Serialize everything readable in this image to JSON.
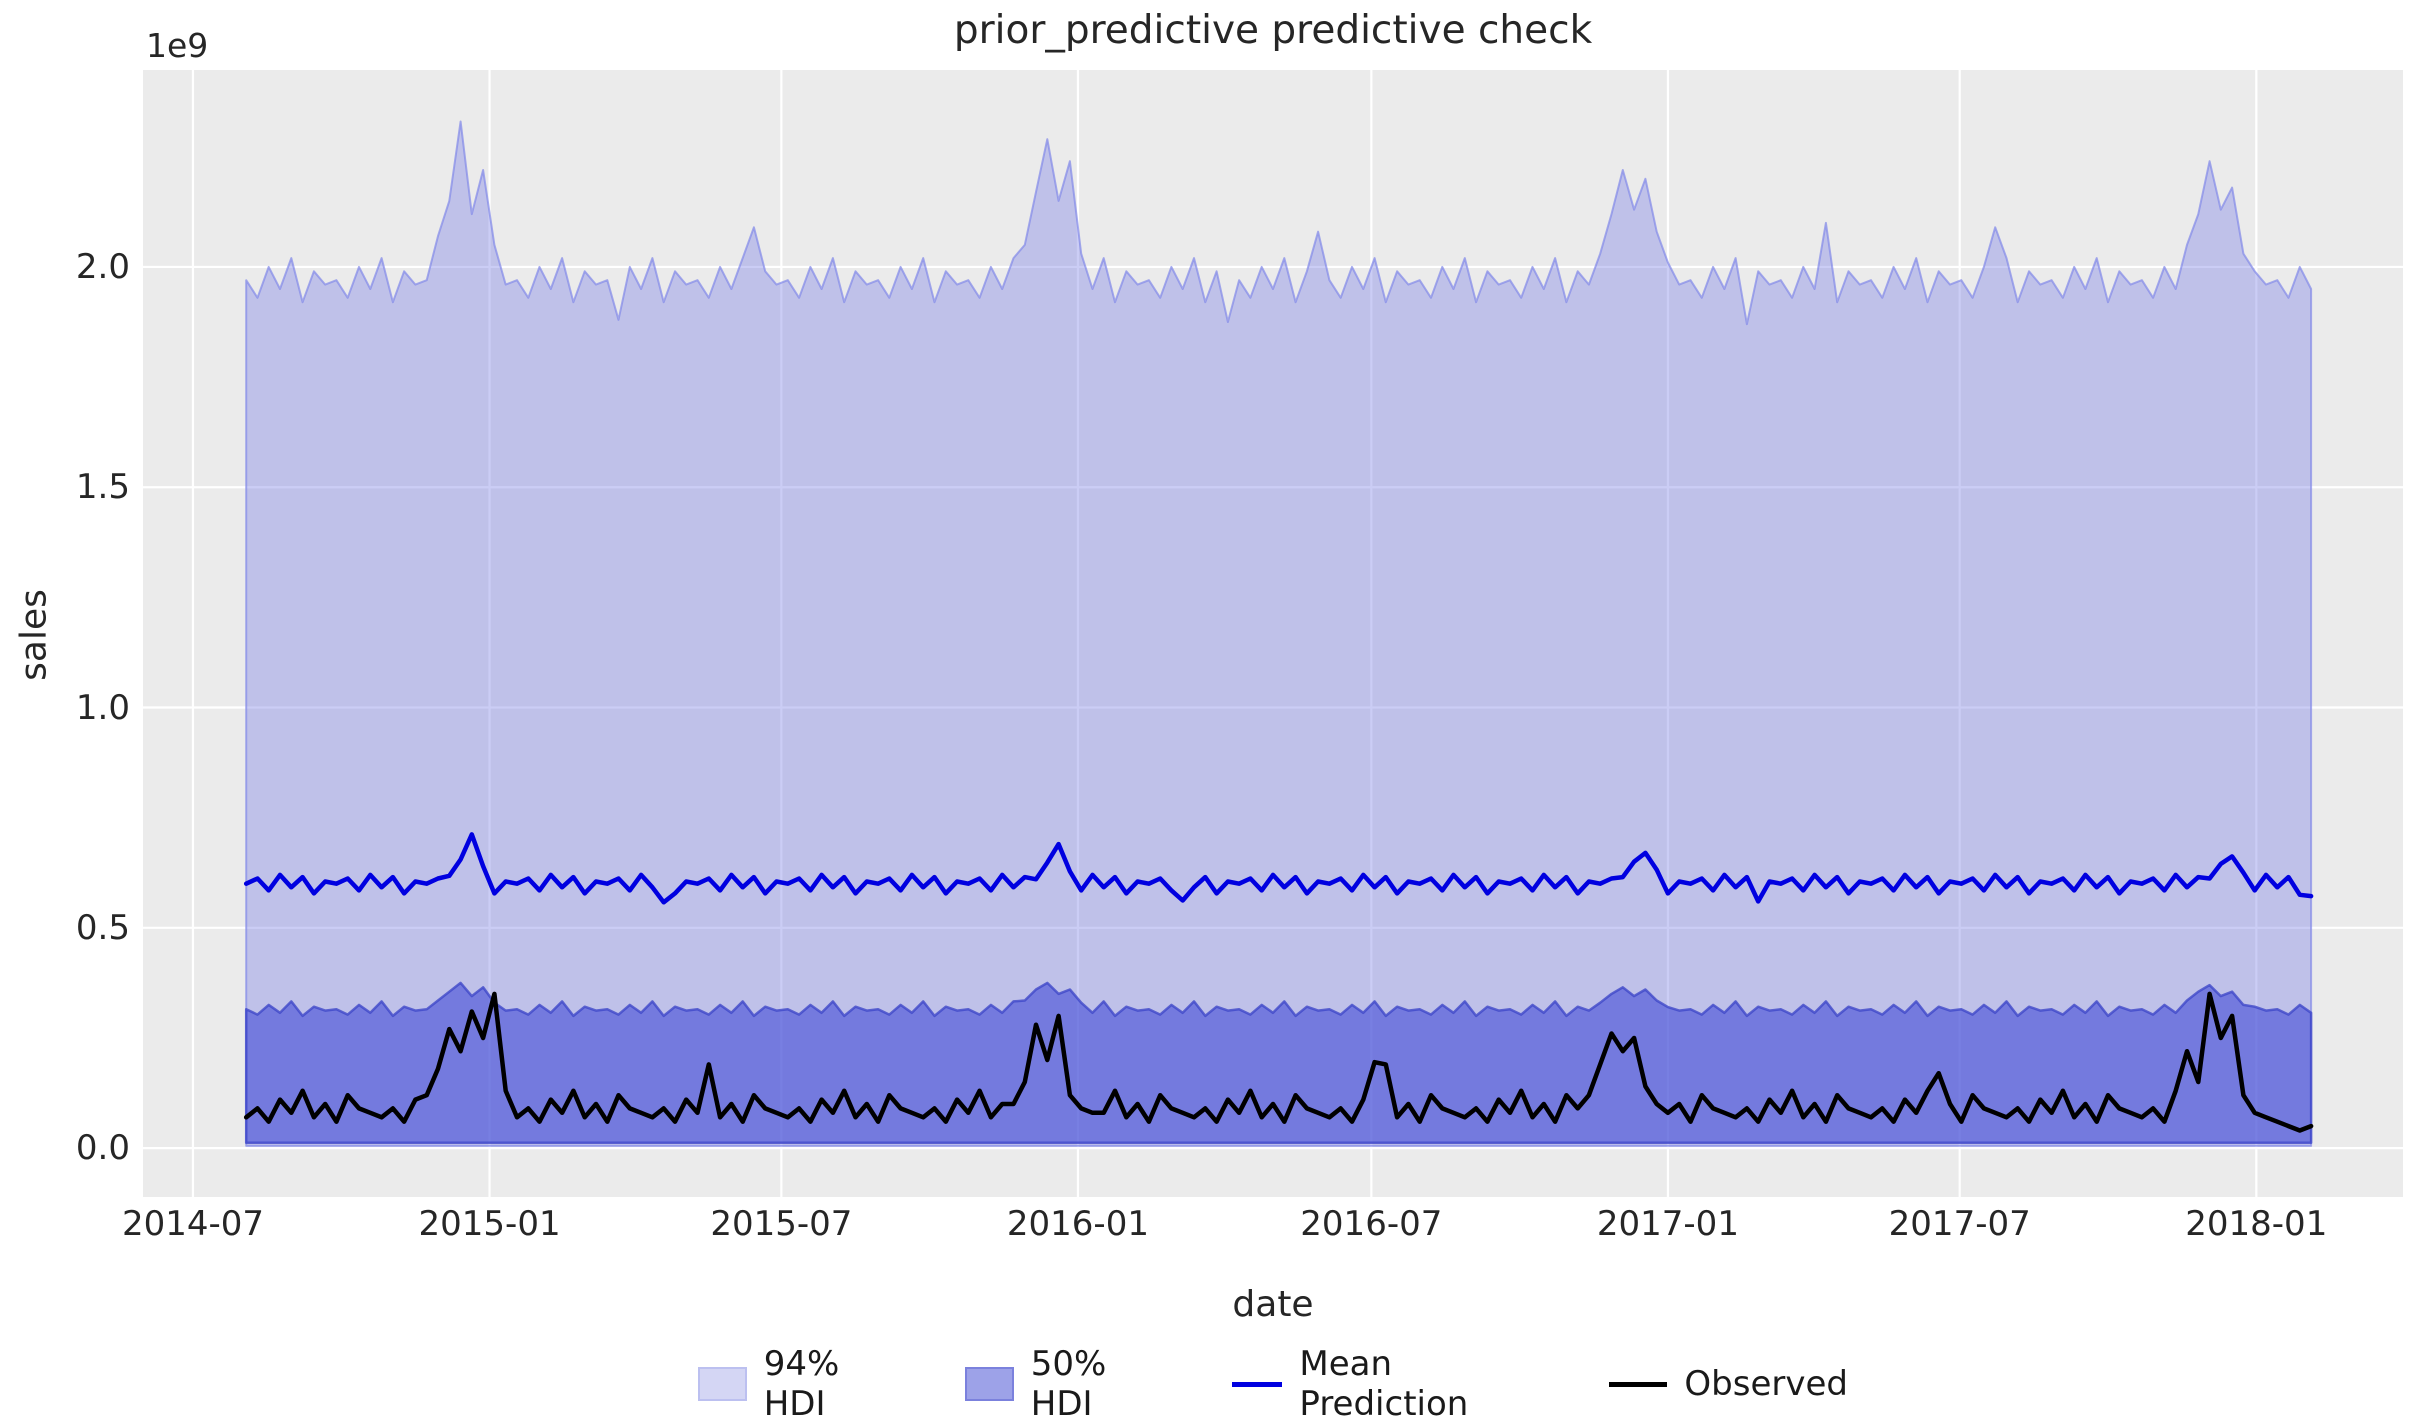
{
  "figure": {
    "title": "prior_predictive predictive check",
    "xlabel": "date",
    "ylabel": "sales",
    "offset_text": "1e9"
  },
  "style": {
    "axes_bg": "#ebebeb",
    "grid_color": "#ffffff",
    "text_color": "#262626",
    "hdi94_fill": "rgba(130,137,232,0.42)",
    "hdi94_edge": "rgba(130,137,232,0.70)",
    "hdi50_fill": "rgba(70,79,214,0.62)",
    "hdi50_edge": "rgba(62,70,200,0.78)",
    "mean_color": "#0000e0",
    "observed_color": "#000000",
    "legend_patch94": "#d4d6f4",
    "legend_patch94_edge": "#bcc0f0",
    "legend_patch50": "#9da2e8",
    "legend_patch50_edge": "#7b81dd"
  },
  "legend": {
    "items": [
      {
        "label": "94% HDI",
        "marker": "patch"
      },
      {
        "label": "50% HDI",
        "marker": "patch"
      },
      {
        "label": "Mean Prediction",
        "marker": "line"
      },
      {
        "label": "Observed",
        "marker": "line"
      }
    ]
  },
  "chart_data": {
    "type": "area",
    "title": "prior_predictive predictive check",
    "xlabel": "date",
    "ylabel": "sales",
    "y_offset_label": "1e9",
    "values_unit": "1e9",
    "grid": true,
    "legend_position": "below",
    "x_start_date": "2014-08-03",
    "x_step_days": 7,
    "n_points": 184,
    "x_start_day_offset": 33,
    "xlim_days_from_2014_07_01": [
      -31,
      1371
    ],
    "ylim_e9": [
      -0.111,
      2.447
    ],
    "x_ticks": [
      {
        "label": "2014-07",
        "day": 0
      },
      {
        "label": "2015-01",
        "day": 184
      },
      {
        "label": "2015-07",
        "day": 365
      },
      {
        "label": "2016-01",
        "day": 549
      },
      {
        "label": "2016-07",
        "day": 731
      },
      {
        "label": "2017-01",
        "day": 915
      },
      {
        "label": "2017-07",
        "day": 1096
      },
      {
        "label": "2018-01",
        "day": 1280
      }
    ],
    "y_ticks": [
      {
        "label": "0.0",
        "value": 0.0
      },
      {
        "label": "0.5",
        "value": 0.5
      },
      {
        "label": "1.0",
        "value": 1.0
      },
      {
        "label": "1.5",
        "value": 1.5
      },
      {
        "label": "2.0",
        "value": 2.0
      }
    ],
    "hdi94": {
      "lower": 0.005,
      "upper": [
        1.97,
        1.93,
        2.0,
        1.95,
        2.02,
        1.92,
        1.99,
        1.96,
        1.97,
        1.93,
        2.0,
        1.95,
        2.02,
        1.92,
        1.99,
        1.96,
        1.97,
        2.07,
        2.15,
        2.33,
        2.12,
        2.22,
        2.05,
        1.96,
        1.97,
        1.93,
        2.0,
        1.95,
        2.02,
        1.92,
        1.99,
        1.96,
        1.97,
        1.88,
        2.0,
        1.95,
        2.02,
        1.92,
        1.99,
        1.96,
        1.97,
        1.93,
        2.0,
        1.95,
        2.02,
        2.09,
        1.99,
        1.96,
        1.97,
        1.93,
        2.0,
        1.95,
        2.02,
        1.92,
        1.99,
        1.96,
        1.97,
        1.93,
        2.0,
        1.95,
        2.02,
        1.92,
        1.99,
        1.96,
        1.97,
        1.93,
        2.0,
        1.95,
        2.02,
        2.05,
        2.17,
        2.29,
        2.15,
        2.24,
        2.03,
        1.95,
        2.02,
        1.92,
        1.99,
        1.96,
        1.97,
        1.93,
        2.0,
        1.95,
        2.02,
        1.92,
        1.99,
        1.875,
        1.97,
        1.93,
        2.0,
        1.95,
        2.02,
        1.92,
        1.99,
        2.08,
        1.97,
        1.93,
        2.0,
        1.95,
        2.02,
        1.92,
        1.99,
        1.96,
        1.97,
        1.93,
        2.0,
        1.95,
        2.02,
        1.92,
        1.99,
        1.96,
        1.97,
        1.93,
        2.0,
        1.95,
        2.02,
        1.92,
        1.99,
        1.96,
        2.03,
        2.12,
        2.22,
        2.13,
        2.2,
        2.08,
        2.01,
        1.96,
        1.97,
        1.93,
        2.0,
        1.95,
        2.02,
        1.87,
        1.99,
        1.96,
        1.97,
        1.93,
        2.0,
        1.95,
        2.1,
        1.92,
        1.99,
        1.96,
        1.97,
        1.93,
        2.0,
        1.95,
        2.02,
        1.92,
        1.99,
        1.96,
        1.97,
        1.93,
        2.0,
        2.09,
        2.02,
        1.92,
        1.99,
        1.96,
        1.97,
        1.93,
        2.0,
        1.95,
        2.02,
        1.92,
        1.99,
        1.96,
        1.97,
        1.93,
        2.0,
        1.95,
        2.05,
        2.12,
        2.24,
        2.13,
        2.18,
        2.03,
        1.99,
        1.96,
        1.97,
        1.93,
        2.0,
        1.95
      ]
    },
    "hdi50": {
      "lower": 0.012,
      "upper": [
        0.315,
        0.303,
        0.325,
        0.307,
        0.333,
        0.3,
        0.321,
        0.312,
        0.315,
        0.303,
        0.325,
        0.307,
        0.333,
        0.3,
        0.321,
        0.312,
        0.315,
        0.335,
        0.355,
        0.375,
        0.345,
        0.365,
        0.33,
        0.312,
        0.315,
        0.303,
        0.325,
        0.307,
        0.333,
        0.3,
        0.321,
        0.312,
        0.315,
        0.303,
        0.325,
        0.307,
        0.333,
        0.3,
        0.321,
        0.312,
        0.315,
        0.303,
        0.325,
        0.307,
        0.333,
        0.3,
        0.321,
        0.312,
        0.315,
        0.303,
        0.325,
        0.307,
        0.333,
        0.3,
        0.321,
        0.312,
        0.315,
        0.303,
        0.325,
        0.307,
        0.333,
        0.3,
        0.321,
        0.312,
        0.315,
        0.303,
        0.325,
        0.307,
        0.333,
        0.335,
        0.36,
        0.375,
        0.35,
        0.36,
        0.33,
        0.307,
        0.333,
        0.3,
        0.321,
        0.312,
        0.315,
        0.303,
        0.325,
        0.307,
        0.333,
        0.3,
        0.321,
        0.312,
        0.315,
        0.303,
        0.325,
        0.307,
        0.333,
        0.3,
        0.321,
        0.312,
        0.315,
        0.303,
        0.325,
        0.307,
        0.333,
        0.3,
        0.321,
        0.312,
        0.315,
        0.303,
        0.325,
        0.307,
        0.333,
        0.3,
        0.321,
        0.312,
        0.315,
        0.303,
        0.325,
        0.307,
        0.333,
        0.3,
        0.321,
        0.312,
        0.33,
        0.35,
        0.365,
        0.345,
        0.36,
        0.335,
        0.32,
        0.312,
        0.315,
        0.303,
        0.325,
        0.307,
        0.333,
        0.3,
        0.321,
        0.312,
        0.315,
        0.303,
        0.325,
        0.307,
        0.333,
        0.3,
        0.321,
        0.312,
        0.315,
        0.303,
        0.325,
        0.307,
        0.333,
        0.3,
        0.321,
        0.312,
        0.315,
        0.303,
        0.325,
        0.307,
        0.333,
        0.3,
        0.321,
        0.312,
        0.315,
        0.303,
        0.325,
        0.307,
        0.333,
        0.3,
        0.321,
        0.312,
        0.315,
        0.303,
        0.325,
        0.307,
        0.335,
        0.355,
        0.37,
        0.345,
        0.355,
        0.325,
        0.321,
        0.312,
        0.315,
        0.303,
        0.325,
        0.307
      ]
    },
    "mean_prediction": [
      0.6,
      0.612,
      0.585,
      0.62,
      0.592,
      0.615,
      0.578,
      0.605,
      0.6,
      0.612,
      0.585,
      0.62,
      0.592,
      0.615,
      0.578,
      0.605,
      0.6,
      0.612,
      0.618,
      0.655,
      0.712,
      0.64,
      0.578,
      0.605,
      0.6,
      0.612,
      0.585,
      0.62,
      0.592,
      0.615,
      0.578,
      0.605,
      0.6,
      0.612,
      0.585,
      0.62,
      0.592,
      0.558,
      0.578,
      0.605,
      0.6,
      0.612,
      0.585,
      0.62,
      0.592,
      0.615,
      0.578,
      0.605,
      0.6,
      0.612,
      0.585,
      0.62,
      0.592,
      0.615,
      0.578,
      0.605,
      0.6,
      0.612,
      0.585,
      0.62,
      0.592,
      0.615,
      0.578,
      0.605,
      0.6,
      0.612,
      0.585,
      0.62,
      0.592,
      0.615,
      0.61,
      0.648,
      0.69,
      0.628,
      0.585,
      0.62,
      0.592,
      0.615,
      0.578,
      0.605,
      0.6,
      0.612,
      0.585,
      0.562,
      0.592,
      0.615,
      0.578,
      0.605,
      0.6,
      0.612,
      0.585,
      0.62,
      0.592,
      0.615,
      0.578,
      0.605,
      0.6,
      0.612,
      0.585,
      0.62,
      0.592,
      0.615,
      0.578,
      0.605,
      0.6,
      0.612,
      0.585,
      0.62,
      0.592,
      0.615,
      0.578,
      0.605,
      0.6,
      0.612,
      0.585,
      0.62,
      0.592,
      0.615,
      0.578,
      0.605,
      0.6,
      0.612,
      0.615,
      0.65,
      0.67,
      0.632,
      0.578,
      0.605,
      0.6,
      0.612,
      0.585,
      0.62,
      0.592,
      0.615,
      0.56,
      0.605,
      0.6,
      0.612,
      0.585,
      0.62,
      0.592,
      0.615,
      0.578,
      0.605,
      0.6,
      0.612,
      0.585,
      0.62,
      0.592,
      0.615,
      0.578,
      0.605,
      0.6,
      0.612,
      0.585,
      0.62,
      0.592,
      0.615,
      0.578,
      0.605,
      0.6,
      0.612,
      0.585,
      0.62,
      0.592,
      0.615,
      0.578,
      0.605,
      0.6,
      0.612,
      0.585,
      0.62,
      0.592,
      0.615,
      0.612,
      0.645,
      0.662,
      0.625,
      0.585,
      0.62,
      0.592,
      0.615,
      0.575,
      0.572
    ],
    "observed": [
      0.07,
      0.09,
      0.06,
      0.11,
      0.08,
      0.13,
      0.07,
      0.1,
      0.06,
      0.12,
      0.09,
      0.08,
      0.07,
      0.09,
      0.06,
      0.11,
      0.12,
      0.18,
      0.27,
      0.22,
      0.31,
      0.25,
      0.35,
      0.13,
      0.07,
      0.09,
      0.06,
      0.11,
      0.08,
      0.13,
      0.07,
      0.1,
      0.06,
      0.12,
      0.09,
      0.08,
      0.07,
      0.09,
      0.06,
      0.11,
      0.08,
      0.19,
      0.07,
      0.1,
      0.06,
      0.12,
      0.09,
      0.08,
      0.07,
      0.09,
      0.06,
      0.11,
      0.08,
      0.13,
      0.07,
      0.1,
      0.06,
      0.12,
      0.09,
      0.08,
      0.07,
      0.09,
      0.06,
      0.11,
      0.08,
      0.13,
      0.07,
      0.1,
      0.1,
      0.15,
      0.28,
      0.2,
      0.3,
      0.12,
      0.09,
      0.08,
      0.08,
      0.13,
      0.07,
      0.1,
      0.06,
      0.12,
      0.09,
      0.08,
      0.07,
      0.09,
      0.06,
      0.11,
      0.08,
      0.13,
      0.07,
      0.1,
      0.06,
      0.12,
      0.09,
      0.08,
      0.07,
      0.09,
      0.06,
      0.11,
      0.195,
      0.19,
      0.07,
      0.1,
      0.06,
      0.12,
      0.09,
      0.08,
      0.07,
      0.09,
      0.06,
      0.11,
      0.08,
      0.13,
      0.07,
      0.1,
      0.06,
      0.12,
      0.09,
      0.12,
      0.19,
      0.26,
      0.22,
      0.25,
      0.14,
      0.1,
      0.08,
      0.1,
      0.06,
      0.12,
      0.09,
      0.08,
      0.07,
      0.09,
      0.06,
      0.11,
      0.08,
      0.13,
      0.07,
      0.1,
      0.06,
      0.12,
      0.09,
      0.08,
      0.07,
      0.09,
      0.06,
      0.11,
      0.08,
      0.13,
      0.17,
      0.1,
      0.06,
      0.12,
      0.09,
      0.08,
      0.07,
      0.09,
      0.06,
      0.11,
      0.08,
      0.13,
      0.07,
      0.1,
      0.06,
      0.12,
      0.09,
      0.08,
      0.07,
      0.09,
      0.06,
      0.13,
      0.22,
      0.15,
      0.35,
      0.25,
      0.3,
      0.12,
      0.08,
      0.07,
      0.06,
      0.05,
      0.04,
      0.05
    ]
  }
}
